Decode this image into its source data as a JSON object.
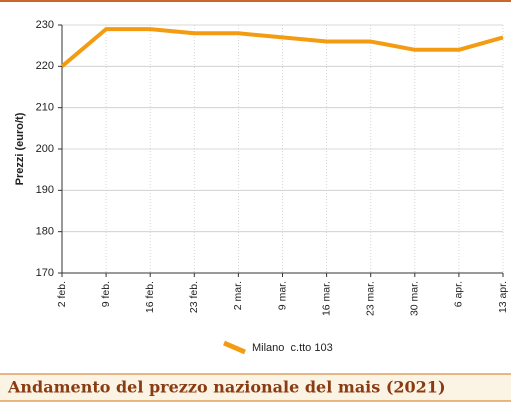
{
  "chart_data": {
    "type": "line",
    "title": "Andamento del prezzo nazionale del mais (2021)",
    "y_label": "Prezzi (euro/t)",
    "categories": [
      "2 feb.",
      "9 feb.",
      "16 feb.",
      "23 feb.",
      "2 mar.",
      "9 mar.",
      "16 mar.",
      "23 mar.",
      "30 mar.",
      "6 apr.",
      "13 apr."
    ],
    "series": [
      {
        "name": "Milano  c.tto 103",
        "color": "#f39c12",
        "values": [
          220,
          229,
          229,
          228,
          228,
          227,
          226,
          226,
          224,
          224,
          227
        ]
      }
    ],
    "ylim": [
      170,
      230
    ],
    "yticks": [
      170,
      180,
      190,
      200,
      210,
      220,
      230
    ],
    "grid": true
  }
}
